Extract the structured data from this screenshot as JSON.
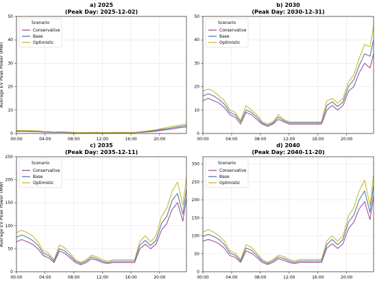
{
  "chart_data": [
    {
      "type": "line",
      "title": "a) 2025",
      "subtitle": "(Peak Day: 2025-12-02)",
      "xlabel": "",
      "ylabel": "Average EV Peak Power (MW)",
      "ylim": [
        0,
        50
      ],
      "yticks": [
        0,
        10,
        20,
        30,
        40,
        50
      ],
      "xlim": [
        "00:00",
        "23:45"
      ],
      "xticks": [
        "00:00",
        "04:00",
        "08:00",
        "12:00",
        "16:00",
        "20:00"
      ],
      "grid": true,
      "legend": {
        "title": "Scenario",
        "placement": "upper-left"
      },
      "x": [
        "00:00",
        "00:45",
        "01:30",
        "02:15",
        "03:00",
        "03:45",
        "04:30",
        "05:15",
        "06:00",
        "06:45",
        "07:30",
        "08:15",
        "09:00",
        "09:45",
        "10:30",
        "11:15",
        "12:00",
        "12:45",
        "13:30",
        "14:15",
        "15:00",
        "15:45",
        "16:30",
        "17:15",
        "18:00",
        "18:45",
        "19:30",
        "20:15",
        "21:00",
        "21:45",
        "22:30",
        "23:15",
        "23:45"
      ],
      "series": [
        {
          "name": "Conservative",
          "color": "#9c4f96",
          "values": [
            0.9,
            0.9,
            0.85,
            0.8,
            0.75,
            0.6,
            0.55,
            0.4,
            0.5,
            0.45,
            0.35,
            0.3,
            0.25,
            0.25,
            0.3,
            0.3,
            0.25,
            0.25,
            0.3,
            0.3,
            0.3,
            0.3,
            0.3,
            0.5,
            0.6,
            0.8,
            1.0,
            1.3,
            1.6,
            1.9,
            2.3,
            2.6,
            2.8
          ]
        },
        {
          "name": "Base",
          "color": "#4d79a8",
          "values": [
            1.1,
            1.1,
            1.05,
            1.0,
            0.9,
            0.75,
            0.7,
            0.5,
            0.6,
            0.55,
            0.45,
            0.4,
            0.35,
            0.35,
            0.4,
            0.4,
            0.35,
            0.35,
            0.4,
            0.4,
            0.4,
            0.4,
            0.4,
            0.6,
            0.8,
            1.0,
            1.3,
            1.7,
            2.0,
            2.4,
            2.8,
            3.2,
            3.4
          ]
        },
        {
          "name": "Optimistic",
          "color": "#c9b82a",
          "values": [
            1.3,
            1.3,
            1.25,
            1.2,
            1.1,
            0.9,
            0.85,
            0.6,
            0.75,
            0.7,
            0.55,
            0.5,
            0.45,
            0.45,
            0.5,
            0.5,
            0.45,
            0.45,
            0.5,
            0.5,
            0.5,
            0.5,
            0.5,
            0.75,
            1.0,
            1.3,
            1.6,
            2.1,
            2.5,
            3.0,
            3.4,
            3.8,
            4.1
          ]
        }
      ]
    },
    {
      "type": "line",
      "title": "b) 2030",
      "subtitle": "(Peak Day: 2030-12-31)",
      "xlabel": "",
      "ylabel": "",
      "ylim": [
        0,
        50
      ],
      "yticks": [
        0,
        10,
        20,
        30,
        40,
        50
      ],
      "xlim": [
        "00:00",
        "23:45"
      ],
      "xticks": [
        "00:00",
        "04:00",
        "08:00",
        "12:00",
        "16:00",
        "20:00"
      ],
      "grid": true,
      "legend": {
        "title": "Scenario",
        "placement": "upper-left"
      },
      "x": [
        "00:00",
        "00:45",
        "01:30",
        "02:15",
        "03:00",
        "03:45",
        "04:30",
        "05:15",
        "06:00",
        "06:45",
        "07:30",
        "08:15",
        "09:00",
        "09:45",
        "10:30",
        "11:15",
        "12:00",
        "12:45",
        "13:30",
        "14:15",
        "15:00",
        "15:45",
        "16:30",
        "17:15",
        "18:00",
        "18:45",
        "19:30",
        "20:15",
        "21:00",
        "21:45",
        "22:30",
        "23:15",
        "23:45"
      ],
      "series": [
        {
          "name": "Conservative",
          "color": "#9c4f96",
          "values": [
            14,
            15,
            14,
            13,
            11,
            8,
            7,
            4,
            9,
            8,
            6,
            4,
            3,
            4,
            6,
            5,
            4,
            4,
            4,
            4,
            4,
            4,
            4,
            10,
            12,
            10,
            12,
            18,
            20,
            26,
            30,
            28,
            34
          ]
        },
        {
          "name": "Base",
          "color": "#4d79a8",
          "values": [
            16,
            17,
            16,
            14.5,
            12.5,
            9,
            8,
            5,
            10,
            9,
            7,
            4.5,
            3.5,
            4.5,
            7,
            5.5,
            4.5,
            4.5,
            4.5,
            4.5,
            4.5,
            4.5,
            4.5,
            12,
            13.5,
            11.5,
            13.5,
            20,
            23,
            29,
            34,
            33,
            40
          ]
        },
        {
          "name": "Optimistic",
          "color": "#c9b82a",
          "values": [
            18,
            19,
            18,
            16,
            14,
            10,
            9,
            5.5,
            12,
            10,
            8,
            5,
            4,
            5,
            8,
            6,
            5,
            5,
            5,
            5,
            5,
            5,
            5,
            14,
            15,
            13,
            15,
            22,
            25,
            32,
            38,
            37,
            46
          ]
        }
      ]
    },
    {
      "type": "line",
      "title": "c) 2035",
      "subtitle": "(Peak Day: 2035-12-11)",
      "xlabel": "",
      "ylabel": "Average EV Peak Power (MW)",
      "ylim": [
        0,
        250
      ],
      "yticks": [
        0,
        50,
        100,
        150,
        200,
        250
      ],
      "xlim": [
        "00:00",
        "23:45"
      ],
      "xticks": [
        "00:00",
        "04:00",
        "08:00",
        "12:00",
        "16:00",
        "20:00"
      ],
      "grid": true,
      "legend": {
        "title": "Scenario",
        "placement": "upper-left"
      },
      "x": [
        "00:00",
        "00:45",
        "01:30",
        "02:15",
        "03:00",
        "03:45",
        "04:30",
        "05:15",
        "06:00",
        "06:45",
        "07:30",
        "08:15",
        "09:00",
        "09:45",
        "10:30",
        "11:15",
        "12:00",
        "12:45",
        "13:30",
        "14:15",
        "15:00",
        "15:45",
        "16:30",
        "17:15",
        "18:00",
        "18:45",
        "19:30",
        "20:15",
        "21:00",
        "21:45",
        "22:30",
        "23:15",
        "23:45"
      ],
      "series": [
        {
          "name": "Conservative",
          "color": "#9c4f96",
          "values": [
            65,
            70,
            65,
            60,
            50,
            35,
            30,
            20,
            45,
            40,
            30,
            20,
            15,
            20,
            28,
            25,
            20,
            18,
            20,
            20,
            20,
            20,
            20,
            50,
            60,
            50,
            60,
            90,
            105,
            135,
            150,
            110,
            160
          ]
        },
        {
          "name": "Base",
          "color": "#4d79a8",
          "values": [
            75,
            80,
            75,
            68,
            58,
            40,
            35,
            23,
            50,
            45,
            35,
            23,
            18,
            23,
            32,
            28,
            23,
            20,
            23,
            23,
            23,
            23,
            23,
            58,
            68,
            57,
            68,
            105,
            120,
            155,
            170,
            125,
            180
          ]
        },
        {
          "name": "Optimistic",
          "color": "#c9b82a",
          "values": [
            85,
            90,
            85,
            78,
            65,
            45,
            40,
            26,
            58,
            52,
            40,
            26,
            20,
            26,
            36,
            32,
            26,
            23,
            26,
            26,
            26,
            26,
            26,
            66,
            78,
            65,
            78,
            120,
            138,
            175,
            195,
            145,
            205
          ]
        }
      ]
    },
    {
      "type": "line",
      "title": "d) 2040",
      "subtitle": "(Peak Day: 2040-11-20)",
      "xlabel": "",
      "ylabel": "",
      "ylim": [
        0,
        320
      ],
      "yticks": [
        0,
        50,
        100,
        150,
        200,
        250,
        300
      ],
      "xlim": [
        "00:00",
        "23:45"
      ],
      "xticks": [
        "00:00",
        "04:00",
        "08:00",
        "12:00",
        "16:00",
        "20:00"
      ],
      "grid": true,
      "legend": {
        "title": "Scenario",
        "placement": "upper-left"
      },
      "x": [
        "00:00",
        "00:45",
        "01:30",
        "02:15",
        "03:00",
        "03:45",
        "04:30",
        "05:15",
        "06:00",
        "06:45",
        "07:30",
        "08:15",
        "09:00",
        "09:45",
        "10:30",
        "11:15",
        "12:00",
        "12:45",
        "13:30",
        "14:15",
        "15:00",
        "15:45",
        "16:30",
        "17:15",
        "18:00",
        "18:45",
        "19:30",
        "20:15",
        "21:00",
        "21:45",
        "22:30",
        "23:15",
        "23:45"
      ],
      "series": [
        {
          "name": "Conservative",
          "color": "#9c4f96",
          "values": [
            85,
            90,
            85,
            78,
            65,
            45,
            40,
            26,
            58,
            52,
            40,
            26,
            20,
            26,
            36,
            32,
            26,
            23,
            26,
            26,
            26,
            26,
            26,
            66,
            78,
            65,
            78,
            120,
            138,
            175,
            195,
            145,
            210
          ]
        },
        {
          "name": "Base",
          "color": "#4d79a8",
          "values": [
            98,
            104,
            98,
            90,
            75,
            52,
            46,
            30,
            66,
            60,
            46,
            30,
            23,
            30,
            41,
            37,
            30,
            26,
            30,
            30,
            30,
            30,
            30,
            76,
            90,
            75,
            90,
            138,
            158,
            200,
            225,
            165,
            240
          ]
        },
        {
          "name": "Optimistic",
          "color": "#c9b82a",
          "values": [
            110,
            118,
            110,
            100,
            85,
            58,
            52,
            34,
            75,
            68,
            52,
            34,
            26,
            34,
            46,
            42,
            34,
            30,
            34,
            34,
            34,
            34,
            34,
            86,
            100,
            85,
            100,
            155,
            178,
            225,
            255,
            185,
            270
          ]
        }
      ]
    }
  ]
}
